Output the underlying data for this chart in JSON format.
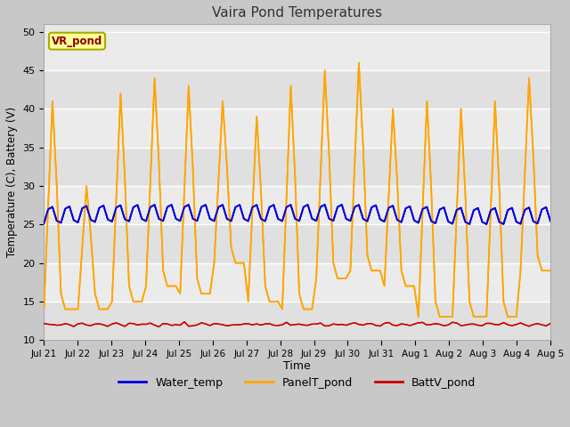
{
  "title": "Vaira Pond Temperatures",
  "xlabel": "Time",
  "ylabel": "Temperature (C), Battery (V)",
  "ylim": [
    10,
    51
  ],
  "yticks": [
    10,
    15,
    20,
    25,
    30,
    35,
    40,
    45,
    50
  ],
  "station_label": "VR_pond",
  "station_label_color": "#8B0000",
  "station_box_facecolor": "#FFFF99",
  "station_box_edgecolor": "#AAAA00",
  "fig_bg_color": "#C8C8C8",
  "plot_bg_color": "#E8E8E8",
  "grid_bg_color": "#DCDCDC",
  "water_color": "#0000DD",
  "panel_color": "#FFA500",
  "batt_color": "#CC0000",
  "legend_labels": [
    "Water_temp",
    "PanelT_pond",
    "BattV_pond"
  ],
  "x_tick_labels": [
    "Jul 21",
    "Jul 22",
    "Jul 23",
    "Jul 24",
    "Jul 25",
    "Jul 26",
    "Jul 27",
    "Jul 28",
    "Jul 29",
    "Jul 30",
    "Jul 31",
    "Aug 1",
    "Aug 2",
    "Aug 3",
    "Aug 4",
    "Aug 5"
  ],
  "n_days": 15
}
